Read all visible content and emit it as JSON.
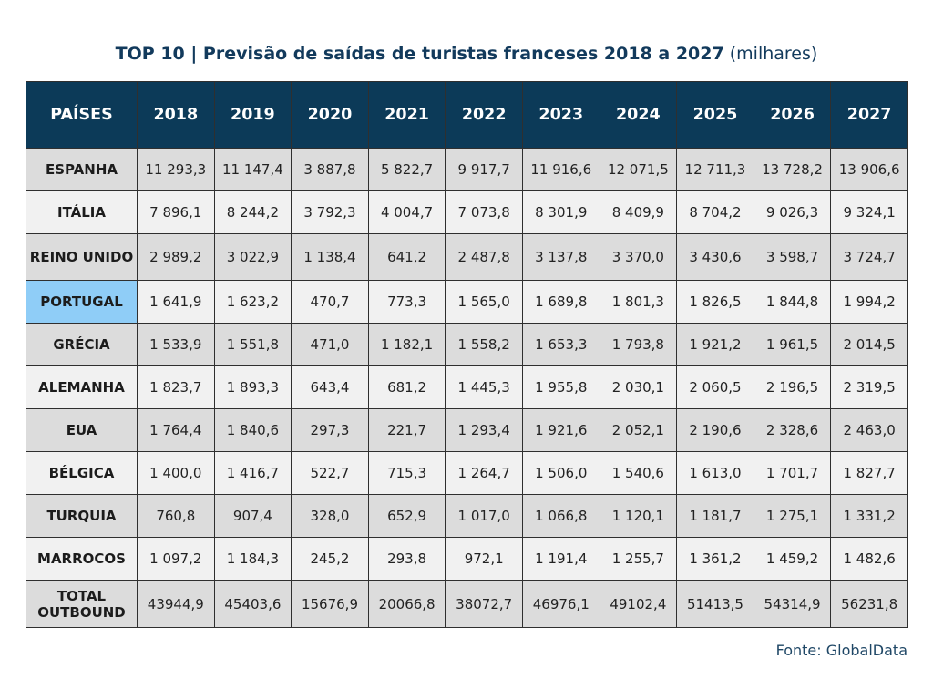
{
  "title": {
    "main": "TOP 10 | Previsão de saídas de turistas franceses 2018 a 2027",
    "suffix": "(milhares)"
  },
  "table": {
    "country_header": "PAÍSES",
    "years": [
      "2018",
      "2019",
      "2020",
      "2021",
      "2022",
      "2023",
      "2024",
      "2025",
      "2026",
      "2027"
    ],
    "rows": [
      {
        "country": "ESPANHA",
        "values": [
          "11 293,3",
          "11 147,4",
          "3 887,8",
          "5 822,7",
          "9 917,7",
          "11 916,6",
          "12 071,5",
          "12 711,3",
          "13 728,2",
          "13 906,6"
        ]
      },
      {
        "country": "ITÁLIA",
        "values": [
          "7 896,1",
          "8 244,2",
          "3 792,3",
          "4 004,7",
          "7 073,8",
          "8 301,9",
          "8 409,9",
          "8 704,2",
          "9 026,3",
          "9 324,1"
        ]
      },
      {
        "country": "REINO UNIDO",
        "values": [
          "2 989,2",
          "3 022,9",
          "1 138,4",
          "641,2",
          "2 487,8",
          "3 137,8",
          "3 370,0",
          "3 430,6",
          "3 598,7",
          "3 724,7"
        ]
      },
      {
        "country": "PORTUGAL",
        "highlight": true,
        "values": [
          "1 641,9",
          "1 623,2",
          "470,7",
          "773,3",
          "1 565,0",
          "1 689,8",
          "1 801,3",
          "1 826,5",
          "1 844,8",
          "1 994,2"
        ]
      },
      {
        "country": "GRÉCIA",
        "values": [
          "1 533,9",
          "1 551,8",
          "471,0",
          "1 182,1",
          "1 558,2",
          "1 653,3",
          "1 793,8",
          "1 921,2",
          "1 961,5",
          "2 014,5"
        ]
      },
      {
        "country": "ALEMANHA",
        "values": [
          "1 823,7",
          "1 893,3",
          "643,4",
          "681,2",
          "1 445,3",
          "1 955,8",
          "2 030,1",
          "2 060,5",
          "2 196,5",
          "2 319,5"
        ]
      },
      {
        "country": "EUA",
        "values": [
          "1 764,4",
          "1 840,6",
          "297,3",
          "221,7",
          "1 293,4",
          "1 921,6",
          "2 052,1",
          "2 190,6",
          "2 328,6",
          "2 463,0"
        ]
      },
      {
        "country": "BÉLGICA",
        "values": [
          "1 400,0",
          "1 416,7",
          "522,7",
          "715,3",
          "1 264,7",
          "1 506,0",
          "1 540,6",
          "1 613,0",
          "1 701,7",
          "1 827,7"
        ]
      },
      {
        "country": "TURQUIA",
        "values": [
          "760,8",
          "907,4",
          "328,0",
          "652,9",
          "1 017,0",
          "1 066,8",
          "1 120,1",
          "1 181,7",
          "1 275,1",
          "1 331,2"
        ]
      },
      {
        "country": "MARROCOS",
        "values": [
          "1 097,2",
          "1 184,3",
          "245,2",
          "293,8",
          "972,1",
          "1 191,4",
          "1 255,7",
          "1 361,2",
          "1 459,2",
          "1 482,6"
        ]
      },
      {
        "country": "TOTAL\nOUTBOUND",
        "values": [
          "43944,9",
          "45403,6",
          "15676,9",
          "20066,8",
          "38072,7",
          "46976,1",
          "49102,4",
          "51413,5",
          "54314,9",
          "56231,8"
        ]
      }
    ]
  },
  "source": "Fonte: GlobalData",
  "colors": {
    "header_bg": "#0c3a58",
    "row_shade": "#dcdcdc",
    "row_plain": "#f1f1f1",
    "highlight": "#8fcdf7",
    "title": "#123a5c"
  }
}
